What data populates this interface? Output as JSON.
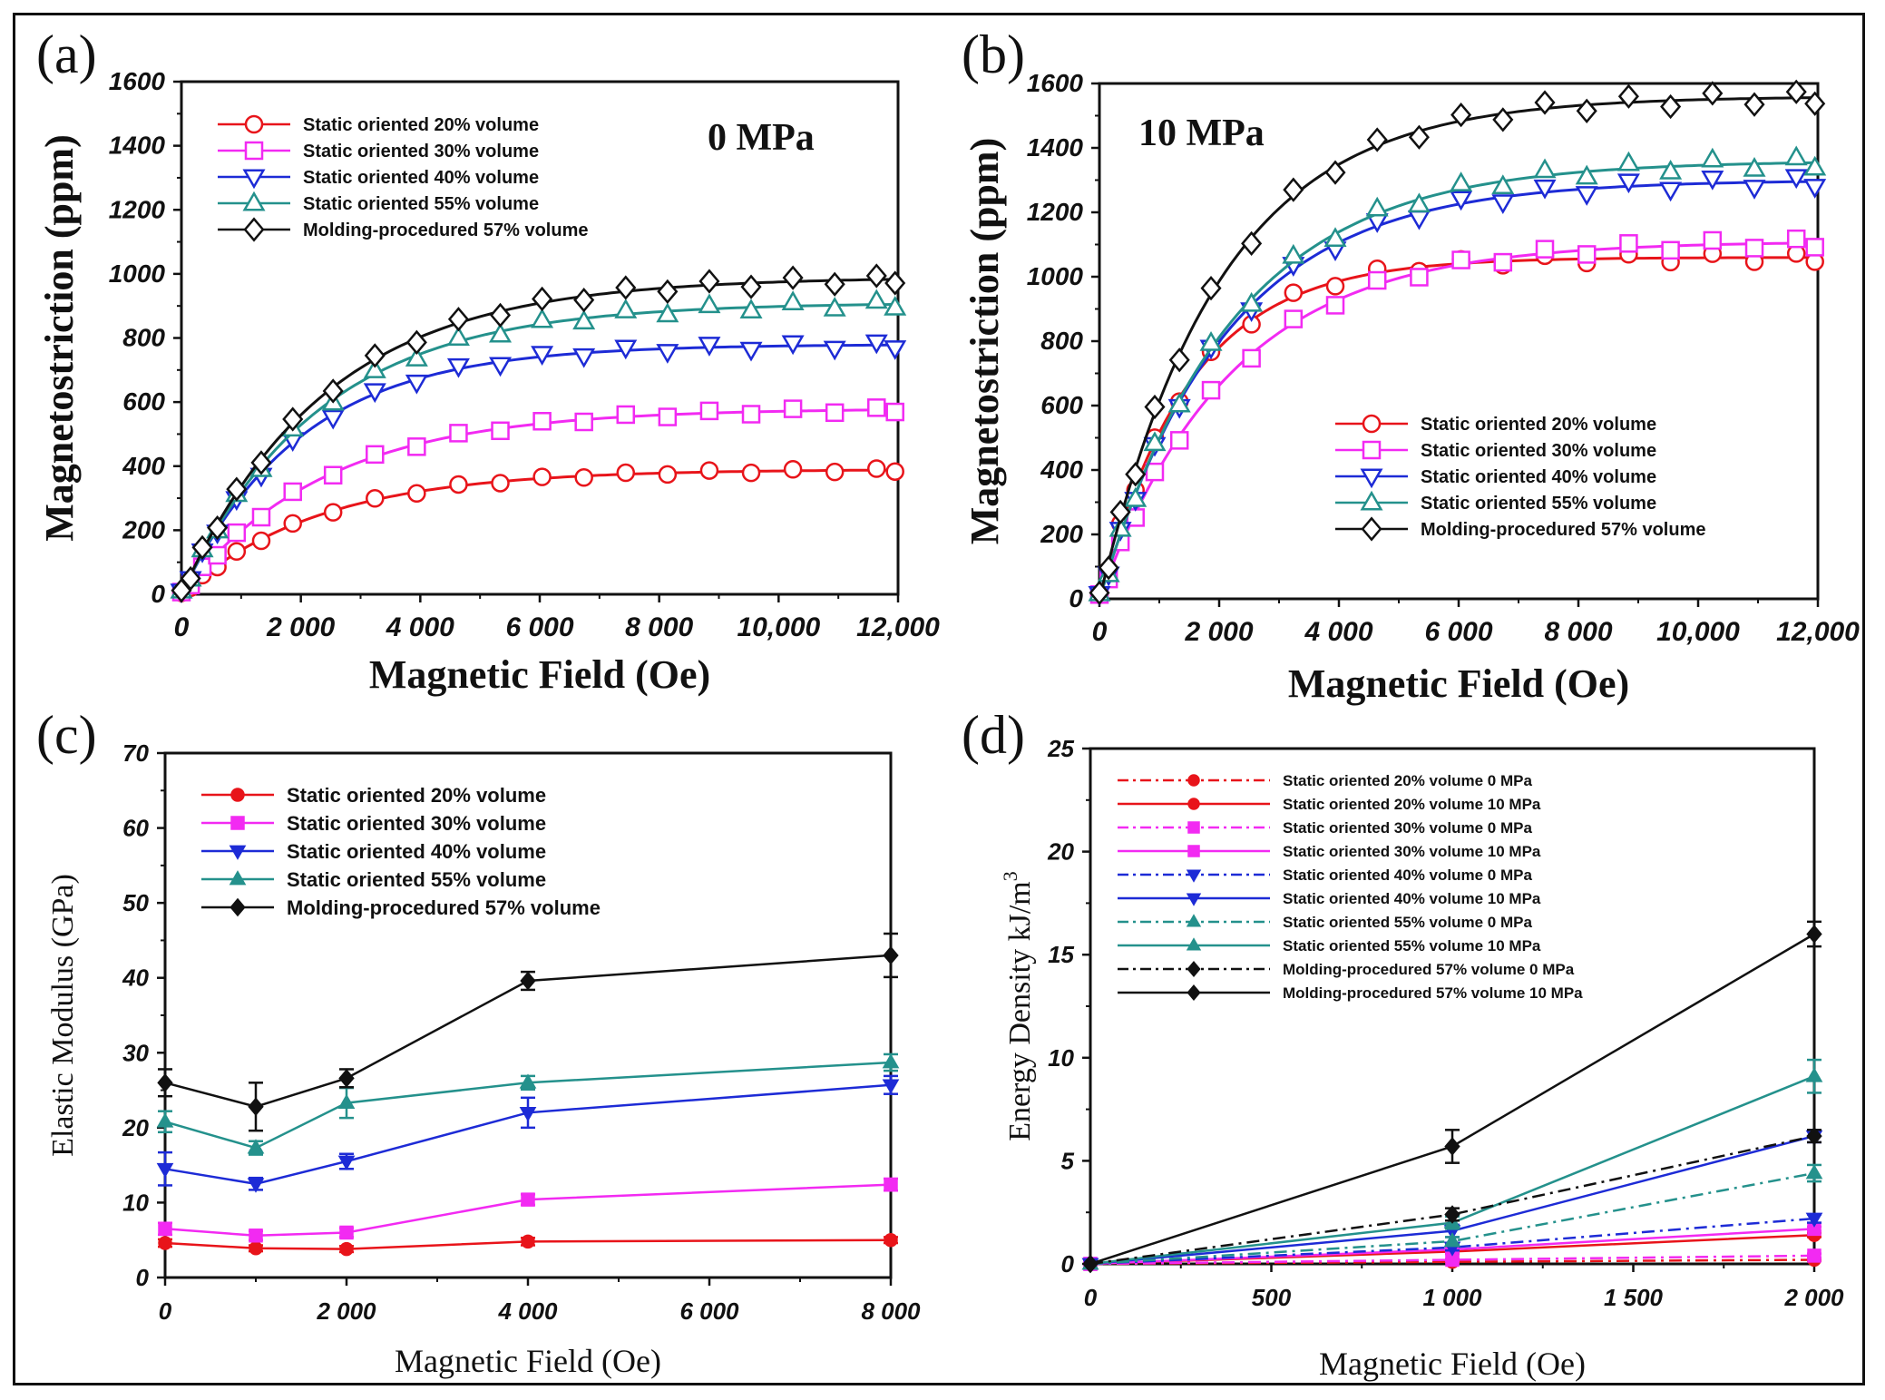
{
  "colors": {
    "red": "#e8141a",
    "magenta": "#f22af2",
    "blue": "#1d2bd6",
    "teal": "#24918c",
    "black": "#111111"
  },
  "chart_data": [
    {
      "id": "a",
      "type": "line",
      "panel_label": "(a)",
      "annotation": "0 MPa",
      "xlabel": "Magnetic Field  (Oe)",
      "ylabel": "Magnetostriction  (ppm)",
      "xlim": [
        0,
        12000
      ],
      "ylim": [
        0,
        1600
      ],
      "x_ticks": [
        0,
        2000,
        4000,
        6000,
        8000,
        10000,
        12000
      ],
      "x_tick_labels": [
        "0",
        "2 000",
        "4 000",
        "6 000",
        "8 000",
        "10,000",
        "12,000"
      ],
      "y_ticks": [
        0,
        200,
        400,
        600,
        800,
        1000,
        1200,
        1400,
        1600
      ],
      "y_tick_labels": [
        "0",
        "200",
        "400",
        "600",
        "800",
        "1000",
        "1200",
        "1400",
        "1600"
      ],
      "legend_position": "top-left",
      "series": [
        {
          "name": "Static oriented 20% volume",
          "color": "red",
          "marker": "circle-open",
          "sat": 390,
          "k": 2300
        },
        {
          "name": "Static oriented 30% volume",
          "color": "magenta",
          "marker": "square-open",
          "sat": 580,
          "k": 2400
        },
        {
          "name": "Static oriented 40% volume",
          "color": "blue",
          "marker": "triangle-down-open",
          "sat": 780,
          "k": 2000
        },
        {
          "name": "Static oriented 55% volume",
          "color": "teal",
          "marker": "triangle-up-open",
          "sat": 910,
          "k": 2300
        },
        {
          "name": "Molding-procedured 57% volume",
          "color": "black",
          "marker": "diamond-open",
          "sat": 990,
          "k": 2400
        }
      ]
    },
    {
      "id": "b",
      "type": "line",
      "panel_label": "(b)",
      "annotation": "10 MPa",
      "xlabel": "Magnetic Field  (Oe)",
      "ylabel": "Magnetostriction  (ppm)",
      "xlim": [
        0,
        12000
      ],
      "ylim": [
        0,
        1600
      ],
      "x_ticks": [
        0,
        2000,
        4000,
        6000,
        8000,
        10000,
        12000
      ],
      "x_tick_labels": [
        "0",
        "2 000",
        "4 000",
        "6 000",
        "8 000",
        "10,000",
        "12,000"
      ],
      "y_ticks": [
        0,
        200,
        400,
        600,
        800,
        1000,
        1200,
        1400,
        1600
      ],
      "y_tick_labels": [
        "0",
        "200",
        "400",
        "600",
        "800",
        "1000",
        "1200",
        "1400",
        "1600"
      ],
      "legend_position": "bottom-right",
      "series": [
        {
          "name": "Static oriented 20% volume",
          "color": "red",
          "marker": "circle-open",
          "sat": 1060,
          "k": 1500
        },
        {
          "name": "Static oriented 30% volume",
          "color": "magenta",
          "marker": "square-open",
          "sat": 1110,
          "k": 2200
        },
        {
          "name": "Static oriented 40% volume",
          "color": "blue",
          "marker": "triangle-down-open",
          "sat": 1300,
          "k": 2100
        },
        {
          "name": "Static oriented 55% volume",
          "color": "teal",
          "marker": "triangle-up-open",
          "sat": 1360,
          "k": 2200
        },
        {
          "name": "Molding-procedured 57% volume",
          "color": "black",
          "marker": "diamond-open",
          "sat": 1560,
          "k": 2000
        }
      ]
    },
    {
      "id": "c",
      "type": "line",
      "panel_label": "(c)",
      "xlabel": "Magnetic Field  (Oe)",
      "ylabel": "Elastic Modulus  (GPa)",
      "xlim": [
        0,
        8000
      ],
      "ylim": [
        0,
        70
      ],
      "x_ticks": [
        0,
        2000,
        4000,
        6000,
        8000
      ],
      "x_tick_labels": [
        "0",
        "2 000",
        "4 000",
        "6 000",
        "8 000"
      ],
      "y_ticks": [
        0,
        10,
        20,
        30,
        40,
        50,
        60,
        70
      ],
      "y_tick_labels": [
        "0",
        "10",
        "20",
        "30",
        "40",
        "50",
        "60",
        "70"
      ],
      "legend_position": "top-left",
      "x": [
        0,
        1000,
        2000,
        4000,
        8000
      ],
      "series": [
        {
          "name": "Static oriented 20% volume",
          "color": "red",
          "marker": "circle-filled",
          "values": [
            4.6,
            3.9,
            3.8,
            4.8,
            5.0
          ],
          "err": [
            0.5,
            0.4,
            0.4,
            0.5,
            0.4
          ]
        },
        {
          "name": "Static oriented 30% volume",
          "color": "magenta",
          "marker": "square-filled",
          "values": [
            6.5,
            5.6,
            6.0,
            10.4,
            12.4
          ],
          "err": [
            0.8,
            0.6,
            0.6,
            0.7,
            0.8
          ]
        },
        {
          "name": "Static oriented 40% volume",
          "color": "blue",
          "marker": "triangle-down-filled",
          "values": [
            14.5,
            12.5,
            15.5,
            22.0,
            25.7
          ],
          "err": [
            2.2,
            0.8,
            1.0,
            2.0,
            1.2
          ]
        },
        {
          "name": "Static oriented 55% volume",
          "color": "teal",
          "marker": "triangle-up-filled",
          "values": [
            20.8,
            17.3,
            23.3,
            26.0,
            28.7
          ],
          "err": [
            1.4,
            0.9,
            2.0,
            0.9,
            1.1
          ]
        },
        {
          "name": "Molding-procedured 57% volume",
          "color": "black",
          "marker": "diamond-filled",
          "values": [
            26.0,
            22.8,
            26.6,
            39.6,
            43.0
          ],
          "err": [
            1.8,
            3.2,
            1.2,
            1.2,
            2.9
          ]
        }
      ]
    },
    {
      "id": "d",
      "type": "line",
      "panel_label": "(d)",
      "xlabel": "Magnetic Field  (Oe)",
      "ylabel": "Energy Density kJ/m",
      "ylabel_superscript": "3",
      "xlim": [
        0,
        2000
      ],
      "ylim": [
        0,
        25
      ],
      "x_ticks": [
        0,
        500,
        1000,
        1500,
        2000
      ],
      "x_tick_labels": [
        "0",
        "500",
        "1 000",
        "1 500",
        "2 000"
      ],
      "y_ticks": [
        0,
        5,
        10,
        15,
        20,
        25
      ],
      "y_tick_labels": [
        "0",
        "5",
        "10",
        "15",
        "20",
        "25"
      ],
      "legend_position": "top-left",
      "x": [
        0,
        1000,
        2000
      ],
      "series": [
        {
          "name": "Static oriented 20% volume 0 MPa",
          "color": "red",
          "dash": true,
          "marker": "circle-filled",
          "values": [
            0,
            0.1,
            0.2
          ],
          "err": [
            0,
            0.05,
            0.05
          ]
        },
        {
          "name": "Static oriented 20% volume 10 MPa",
          "color": "red",
          "dash": false,
          "marker": "circle-filled",
          "values": [
            0,
            0.6,
            1.4
          ],
          "err": [
            0,
            0.1,
            0.1
          ]
        },
        {
          "name": "Static oriented 30% volume 0 MPa",
          "color": "magenta",
          "dash": true,
          "marker": "square-filled",
          "values": [
            0,
            0.2,
            0.4
          ],
          "err": [
            0,
            0.05,
            0.1
          ]
        },
        {
          "name": "Static oriented 30% volume 10 MPa",
          "color": "magenta",
          "dash": false,
          "marker": "square-filled",
          "values": [
            0,
            0.7,
            1.7
          ],
          "err": [
            0,
            0.1,
            0.1
          ]
        },
        {
          "name": "Static oriented 40% volume 0 MPa",
          "color": "blue",
          "dash": true,
          "marker": "triangle-down-filled",
          "values": [
            0,
            0.8,
            2.2
          ],
          "err": [
            0,
            0.15,
            0.2
          ]
        },
        {
          "name": "Static oriented 40% volume 10 MPa",
          "color": "blue",
          "dash": false,
          "marker": "triangle-down-filled",
          "values": [
            0,
            1.6,
            6.2
          ],
          "err": [
            0,
            0.3,
            0.3
          ]
        },
        {
          "name": "Static oriented 55% volume 0 MPa",
          "color": "teal",
          "dash": true,
          "marker": "triangle-up-filled",
          "values": [
            0,
            1.1,
            4.4
          ],
          "err": [
            0,
            0.2,
            0.4
          ]
        },
        {
          "name": "Static oriented 55% volume 10 MPa",
          "color": "teal",
          "dash": false,
          "marker": "triangle-up-filled",
          "values": [
            0,
            2.0,
            9.1
          ],
          "err": [
            0,
            0.3,
            0.8
          ]
        },
        {
          "name": "Molding-procedured 57% volume 0 MPa",
          "color": "black",
          "dash": true,
          "marker": "diamond-filled",
          "values": [
            0,
            2.4,
            6.2
          ],
          "err": [
            0,
            0.3,
            0.3
          ]
        },
        {
          "name": "Molding-procedured 57% volume 10 MPa",
          "color": "black",
          "dash": false,
          "marker": "diamond-filled",
          "values": [
            0,
            5.7,
            16.0
          ],
          "err": [
            0,
            0.8,
            0.6
          ]
        }
      ]
    }
  ]
}
